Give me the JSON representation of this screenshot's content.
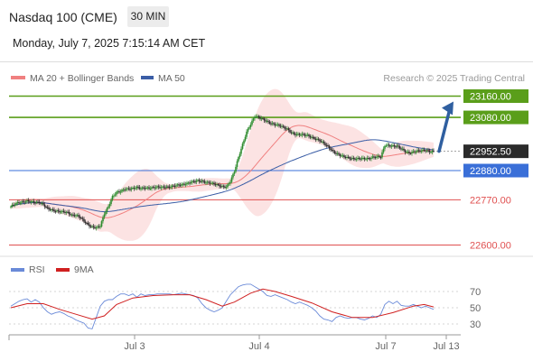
{
  "header": {
    "title": "Nasdaq 100 (CME)",
    "timeframe": "30 MIN",
    "datetime": "Monday, July 7, 2025 7:15:14 AM CET"
  },
  "legend": {
    "bb_label": "MA 20 + Bollinger Bands",
    "ma50_label": "MA 50",
    "credit": "Research © 2025 Trading Central",
    "rsi_label": "RSI",
    "rsi_ma_label": "9MA"
  },
  "colors": {
    "bb": "#f08080",
    "ma50": "#3b5ea6",
    "resistance": "#5a9e1a",
    "support": "#3a6fd8",
    "target": "#e05050",
    "arrow": "#2f5fa0",
    "rsi": "#6a8ad8",
    "rsi_ma": "#d02020"
  },
  "chart_data": {
    "type": "candlestick",
    "x_ticks": [
      "Jul 3",
      "Jul 4",
      "Jul 7",
      "Jul 13"
    ],
    "levels": [
      {
        "value": 23160.0,
        "label": "23160.00",
        "kind": "resistance"
      },
      {
        "value": 23080.0,
        "label": "23080.00",
        "kind": "resistance"
      },
      {
        "value": 22952.5,
        "label": "22952.50",
        "kind": "last"
      },
      {
        "value": 22880.0,
        "label": "22880.00",
        "kind": "support"
      },
      {
        "value": 22770.0,
        "label": "22770.00",
        "kind": "target"
      },
      {
        "value": 22600.0,
        "label": "22600.00",
        "kind": "target"
      }
    ],
    "last_price": 22952.5,
    "ylim": [
      22600,
      23160
    ],
    "price": [
      [
        0,
        22745
      ],
      [
        3,
        22755
      ],
      [
        6,
        22760
      ],
      [
        9,
        22762
      ],
      [
        12,
        22765
      ],
      [
        15,
        22763
      ],
      [
        18,
        22760
      ],
      [
        21,
        22761
      ],
      [
        24,
        22752
      ],
      [
        27,
        22738
      ],
      [
        30,
        22732
      ],
      [
        33,
        22728
      ],
      [
        36,
        22726
      ],
      [
        39,
        22725
      ],
      [
        42,
        22722
      ],
      [
        45,
        22712
      ],
      [
        48,
        22712
      ],
      [
        51,
        22705
      ],
      [
        54,
        22690
      ],
      [
        57,
        22676
      ],
      [
        60,
        22668
      ],
      [
        63,
        22665
      ],
      [
        66,
        22672
      ],
      [
        69,
        22718
      ],
      [
        72,
        22745
      ],
      [
        75,
        22782
      ],
      [
        78,
        22798
      ],
      [
        81,
        22802
      ],
      [
        84,
        22810
      ],
      [
        87,
        22811
      ],
      [
        90,
        22813
      ],
      [
        93,
        22817
      ],
      [
        96,
        22813
      ],
      [
        99,
        22815
      ],
      [
        102,
        22814
      ],
      [
        105,
        22816
      ],
      [
        108,
        22818
      ],
      [
        111,
        22817
      ],
      [
        114,
        22818
      ],
      [
        117,
        22818
      ],
      [
        120,
        22822
      ],
      [
        123,
        22825
      ],
      [
        126,
        22827
      ],
      [
        129,
        22830
      ],
      [
        132,
        22835
      ],
      [
        135,
        22839
      ],
      [
        138,
        22842
      ],
      [
        141,
        22840
      ],
      [
        144,
        22835
      ],
      [
        147,
        22834
      ],
      [
        150,
        22830
      ],
      [
        153,
        22825
      ],
      [
        156,
        22820
      ],
      [
        159,
        22818
      ],
      [
        162,
        22840
      ],
      [
        165,
        22878
      ],
      [
        168,
        22930
      ],
      [
        171,
        22978
      ],
      [
        174,
        23025
      ],
      [
        177,
        23055
      ],
      [
        180,
        23085
      ],
      [
        183,
        23080
      ],
      [
        186,
        23073
      ],
      [
        189,
        23065
      ],
      [
        192,
        23057
      ],
      [
        195,
        23053
      ],
      [
        198,
        23050
      ],
      [
        201,
        23043
      ],
      [
        204,
        23036
      ],
      [
        207,
        23023
      ],
      [
        210,
        23016
      ],
      [
        213,
        23016
      ],
      [
        216,
        23015
      ],
      [
        219,
        23012
      ],
      [
        222,
        23005
      ],
      [
        225,
        22999
      ],
      [
        228,
        22993
      ],
      [
        231,
        22983
      ],
      [
        234,
        22970
      ],
      [
        237,
        22955
      ],
      [
        240,
        22944
      ],
      [
        243,
        22938
      ],
      [
        246,
        22932
      ],
      [
        249,
        22928
      ],
      [
        252,
        22925
      ],
      [
        255,
        22924
      ],
      [
        258,
        22926
      ],
      [
        261,
        22925
      ],
      [
        264,
        22925
      ],
      [
        267,
        22930
      ],
      [
        270,
        22932
      ],
      [
        273,
        22932
      ],
      [
        276,
        22975
      ],
      [
        279,
        22974
      ],
      [
        282,
        22972
      ],
      [
        285,
        22972
      ],
      [
        288,
        22963
      ],
      [
        291,
        22952
      ],
      [
        294,
        22946
      ],
      [
        297,
        22950
      ],
      [
        300,
        22954
      ],
      [
        303,
        22955
      ],
      [
        306,
        22957
      ],
      [
        309,
        22951
      ],
      [
        312,
        22953
      ]
    ],
    "rsi_ticks": [
      70,
      50,
      30
    ],
    "rsi_ylim": [
      20,
      80
    ],
    "rsi": [
      [
        0,
        52
      ],
      [
        3,
        55
      ],
      [
        6,
        58
      ],
      [
        9,
        60
      ],
      [
        12,
        61
      ],
      [
        15,
        57
      ],
      [
        18,
        60
      ],
      [
        21,
        57
      ],
      [
        24,
        50
      ],
      [
        27,
        45
      ],
      [
        30,
        42
      ],
      [
        33,
        44
      ],
      [
        36,
        45
      ],
      [
        39,
        43
      ],
      [
        42,
        40
      ],
      [
        45,
        38
      ],
      [
        48,
        35
      ],
      [
        51,
        33
      ],
      [
        54,
        31
      ],
      [
        57,
        25
      ],
      [
        60,
        24
      ],
      [
        63,
        38
      ],
      [
        66,
        52
      ],
      [
        69,
        58
      ],
      [
        72,
        60
      ],
      [
        75,
        60
      ],
      [
        78,
        64
      ],
      [
        81,
        67
      ],
      [
        84,
        67
      ],
      [
        87,
        65
      ],
      [
        90,
        67
      ],
      [
        93,
        63
      ],
      [
        96,
        67
      ],
      [
        99,
        65
      ],
      [
        102,
        66
      ],
      [
        105,
        66
      ],
      [
        108,
        67
      ],
      [
        111,
        67
      ],
      [
        114,
        67
      ],
      [
        117,
        67
      ],
      [
        120,
        66
      ],
      [
        123,
        67
      ],
      [
        126,
        68
      ],
      [
        129,
        67
      ],
      [
        132,
        66
      ],
      [
        135,
        65
      ],
      [
        138,
        62
      ],
      [
        141,
        55
      ],
      [
        144,
        50
      ],
      [
        147,
        47
      ],
      [
        150,
        45
      ],
      [
        153,
        47
      ],
      [
        156,
        50
      ],
      [
        159,
        58
      ],
      [
        162,
        66
      ],
      [
        165,
        71
      ],
      [
        168,
        76
      ],
      [
        171,
        78
      ],
      [
        174,
        79
      ],
      [
        177,
        79
      ],
      [
        180,
        76
      ],
      [
        183,
        73
      ],
      [
        186,
        70
      ],
      [
        189,
        65
      ],
      [
        192,
        64
      ],
      [
        195,
        66
      ],
      [
        198,
        64
      ],
      [
        201,
        62
      ],
      [
        204,
        60
      ],
      [
        207,
        57
      ],
      [
        210,
        55
      ],
      [
        213,
        57
      ],
      [
        216,
        55
      ],
      [
        219,
        53
      ],
      [
        222,
        50
      ],
      [
        225,
        46
      ],
      [
        228,
        40
      ],
      [
        231,
        36
      ],
      [
        234,
        35
      ],
      [
        237,
        33
      ],
      [
        240,
        38
      ],
      [
        243,
        40
      ],
      [
        246,
        38
      ],
      [
        249,
        37
      ],
      [
        252,
        38
      ],
      [
        255,
        38
      ],
      [
        258,
        36
      ],
      [
        261,
        35
      ],
      [
        264,
        37
      ],
      [
        267,
        40
      ],
      [
        270,
        38
      ],
      [
        273,
        42
      ],
      [
        276,
        54
      ],
      [
        279,
        58
      ],
      [
        282,
        55
      ],
      [
        285,
        58
      ],
      [
        288,
        53
      ],
      [
        291,
        52
      ],
      [
        294,
        52
      ],
      [
        297,
        54
      ],
      [
        300,
        52
      ],
      [
        303,
        50
      ],
      [
        306,
        52
      ],
      [
        309,
        50
      ],
      [
        312,
        48
      ]
    ],
    "rsi_ma": [
      [
        0,
        50
      ],
      [
        12,
        55
      ],
      [
        24,
        55
      ],
      [
        36,
        48
      ],
      [
        48,
        42
      ],
      [
        60,
        36
      ],
      [
        69,
        40
      ],
      [
        78,
        54
      ],
      [
        90,
        62
      ],
      [
        105,
        65
      ],
      [
        120,
        66
      ],
      [
        132,
        66
      ],
      [
        144,
        60
      ],
      [
        156,
        52
      ],
      [
        165,
        57
      ],
      [
        177,
        68
      ],
      [
        186,
        73
      ],
      [
        195,
        70
      ],
      [
        207,
        64
      ],
      [
        222,
        56
      ],
      [
        237,
        45
      ],
      [
        252,
        38
      ],
      [
        267,
        38
      ],
      [
        282,
        44
      ],
      [
        297,
        52
      ],
      [
        305,
        54
      ],
      [
        312,
        51
      ]
    ]
  }
}
